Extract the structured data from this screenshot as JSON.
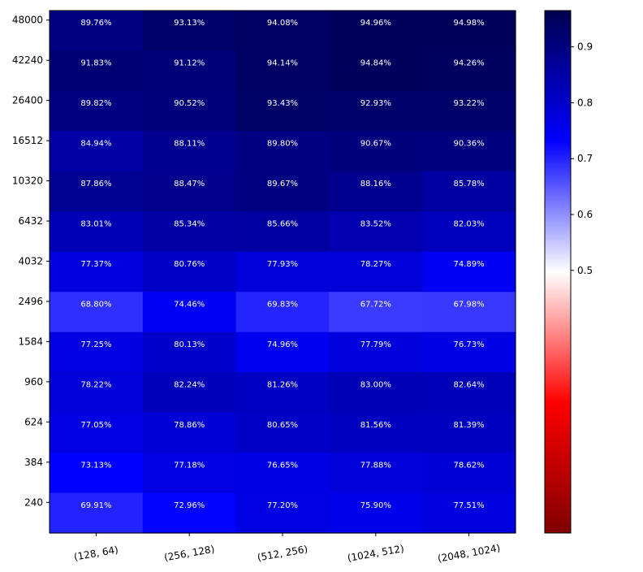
{
  "chart_data": {
    "type": "heatmap",
    "title": "",
    "xlabel": "",
    "ylabel": "",
    "x_categories": [
      "(128, 64)",
      "(256, 128)",
      "(512, 256)",
      "(1024, 512)",
      "(2048, 1024)"
    ],
    "y_categories": [
      "48000",
      "42240",
      "26400",
      "16512",
      "10320",
      "6432",
      "4032",
      "2496",
      "1584",
      "960",
      "624",
      "384",
      "240"
    ],
    "values": [
      [
        0.8976,
        0.9313,
        0.9408,
        0.9496,
        0.9498
      ],
      [
        0.9183,
        0.9112,
        0.9414,
        0.9484,
        0.9426
      ],
      [
        0.8982,
        0.9052,
        0.9343,
        0.9293,
        0.9322
      ],
      [
        0.8494,
        0.8811,
        0.898,
        0.9067,
        0.9036
      ],
      [
        0.8786,
        0.8847,
        0.8967,
        0.8816,
        0.8578
      ],
      [
        0.8301,
        0.8534,
        0.8566,
        0.8352,
        0.8203
      ],
      [
        0.7737,
        0.8076,
        0.7793,
        0.7827,
        0.7489
      ],
      [
        0.688,
        0.7446,
        0.6983,
        0.6772,
        0.6798
      ],
      [
        0.7725,
        0.8013,
        0.7496,
        0.7779,
        0.7673
      ],
      [
        0.7822,
        0.8224,
        0.8126,
        0.83,
        0.8264
      ],
      [
        0.7705,
        0.7886,
        0.8065,
        0.8156,
        0.8139
      ],
      [
        0.7313,
        0.7718,
        0.7665,
        0.7788,
        0.7862
      ],
      [
        0.6991,
        0.7296,
        0.772,
        0.759,
        0.7751
      ]
    ],
    "cell_labels": [
      [
        "89.76%",
        "93.13%",
        "94.08%",
        "94.96%",
        "94.98%"
      ],
      [
        "91.83%",
        "91.12%",
        "94.14%",
        "94.84%",
        "94.26%"
      ],
      [
        "89.82%",
        "90.52%",
        "93.43%",
        "92.93%",
        "93.22%"
      ],
      [
        "84.94%",
        "88.11%",
        "89.80%",
        "90.67%",
        "90.36%"
      ],
      [
        "87.86%",
        "88.47%",
        "89.67%",
        "88.16%",
        "85.78%"
      ],
      [
        "83.01%",
        "85.34%",
        "85.66%",
        "83.52%",
        "82.03%"
      ],
      [
        "77.37%",
        "80.76%",
        "77.93%",
        "78.27%",
        "74.89%"
      ],
      [
        "68.80%",
        "74.46%",
        "69.83%",
        "67.72%",
        "67.98%"
      ],
      [
        "77.25%",
        "80.13%",
        "74.96%",
        "77.79%",
        "76.73%"
      ],
      [
        "78.22%",
        "82.24%",
        "81.26%",
        "83.00%",
        "82.64%"
      ],
      [
        "77.05%",
        "78.86%",
        "80.65%",
        "81.56%",
        "81.39%"
      ],
      [
        "73.13%",
        "77.18%",
        "76.65%",
        "77.88%",
        "78.62%"
      ],
      [
        "69.91%",
        "72.96%",
        "77.20%",
        "75.90%",
        "77.51%"
      ]
    ],
    "colormap": "seismic_r",
    "colormap_stops": [
      "#800000",
      "#ff0000",
      "#ffffff",
      "#0000ff",
      "#000050"
    ],
    "color_range": [
      0.03,
      0.965
    ],
    "colorbar": {
      "ticks": [
        0.5,
        0.6,
        0.7,
        0.8,
        0.9
      ],
      "tick_labels": [
        "0.5",
        "0.6",
        "0.7",
        "0.8",
        "0.9"
      ],
      "placement": "right"
    },
    "grid": false,
    "legend": "none"
  }
}
